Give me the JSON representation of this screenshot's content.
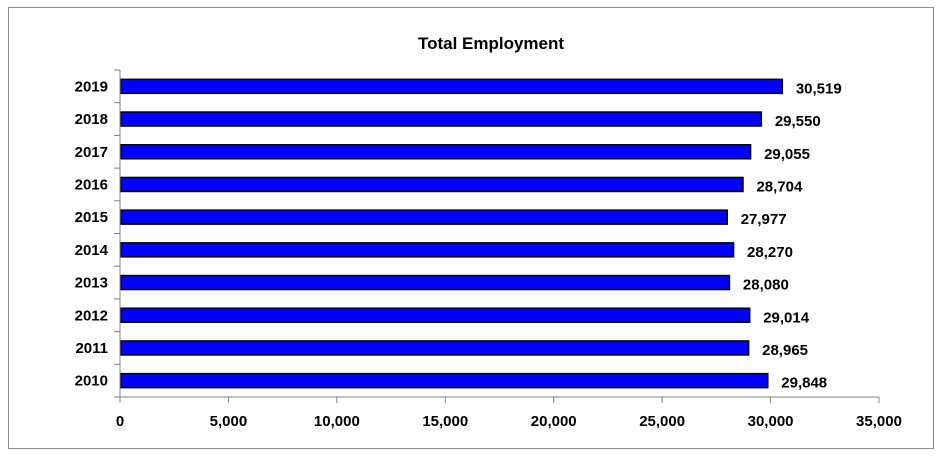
{
  "chart_data": {
    "type": "bar",
    "orientation": "horizontal",
    "title": "Total Employment",
    "categories": [
      "2010",
      "2011",
      "2012",
      "2013",
      "2014",
      "2015",
      "2016",
      "2017",
      "2018",
      "2019"
    ],
    "values": [
      29848,
      28965,
      29014,
      28080,
      28270,
      27977,
      28704,
      29055,
      29550,
      30519
    ],
    "data_labels": [
      "29,848",
      "28,965",
      "29,014",
      "28,080",
      "28,270",
      "27,977",
      "28,704",
      "29,055",
      "29,550",
      "30,519"
    ],
    "xlim": [
      0,
      35000
    ],
    "x_ticks": [
      0,
      5000,
      10000,
      15000,
      20000,
      25000,
      30000,
      35000
    ],
    "x_tick_labels": [
      "0",
      "5,000",
      "10,000",
      "15,000",
      "20,000",
      "25,000",
      "30,000",
      "35,000"
    ],
    "xlabel": "",
    "ylabel": "",
    "grid": false,
    "legend": "none",
    "bar_color": "#0000ff",
    "bar_edge_color": "#000000"
  }
}
